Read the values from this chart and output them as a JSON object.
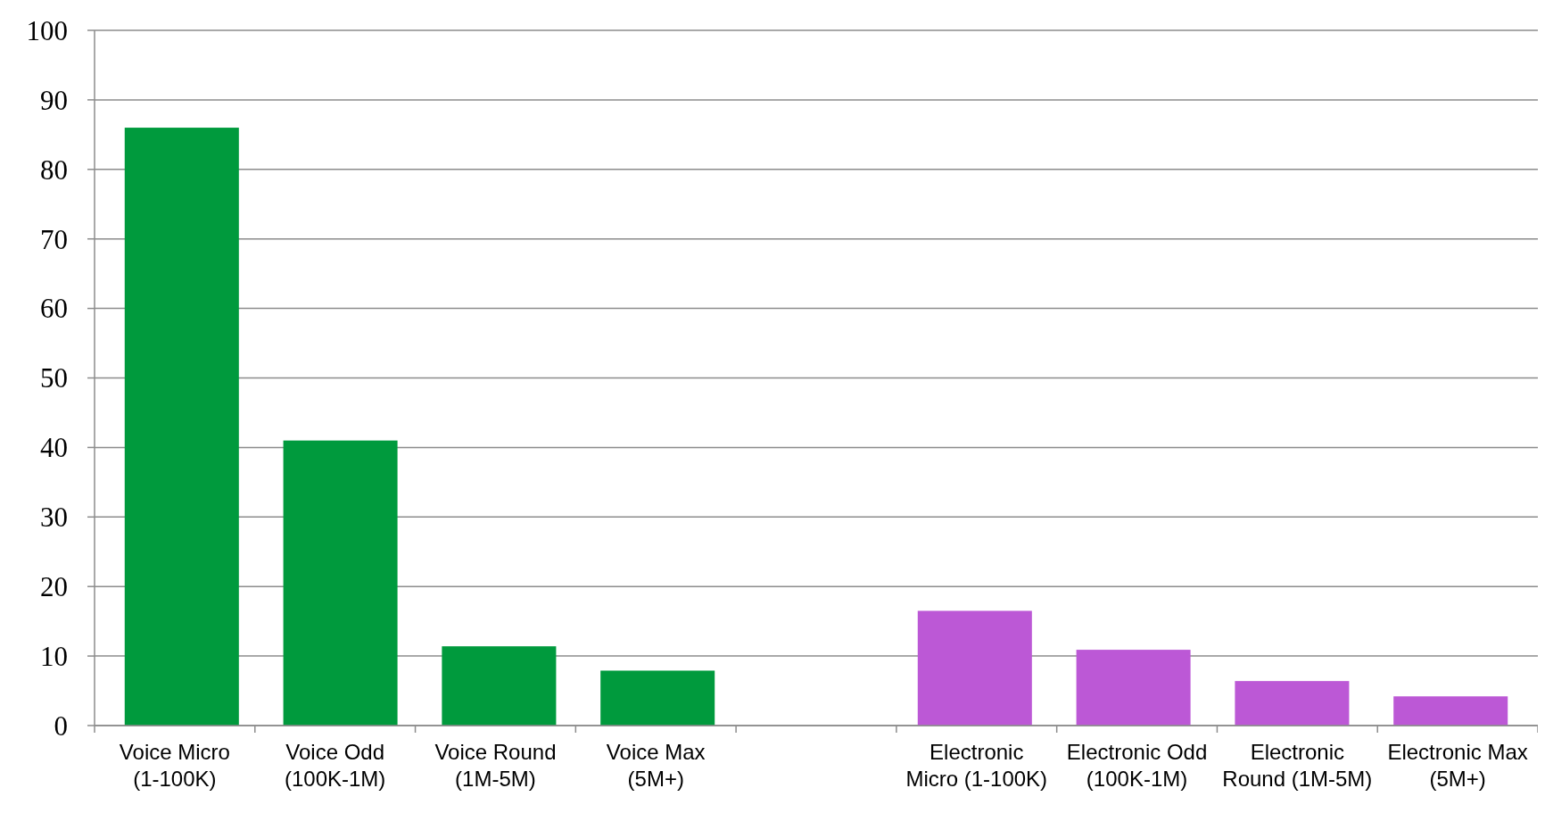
{
  "chart_data": {
    "type": "bar",
    "categories": [
      "Voice Micro (1-100K)",
      "Voice Odd (100K-1M)",
      "Voice Round (1M-5M)",
      "Voice Max (5M+)",
      null,
      "Electronic Micro (1-100K)",
      "Electronic Odd (100K-1M)",
      "Electronic Round (1M-5M)",
      "Electronic Max (5M+)"
    ],
    "values": [
      86,
      41,
      11.4,
      7.9,
      null,
      16.5,
      10.9,
      6.4,
      4.2
    ],
    "colors": [
      "#009a3d",
      "#009a3d",
      "#009a3d",
      "#009a3d",
      null,
      "#bc58d6",
      "#bc58d6",
      "#bc58d6",
      "#bc58d6"
    ],
    "ylim": [
      0,
      100
    ],
    "yticks": [
      0,
      10,
      20,
      30,
      40,
      50,
      60,
      70,
      80,
      90,
      100
    ],
    "grid": "y"
  }
}
